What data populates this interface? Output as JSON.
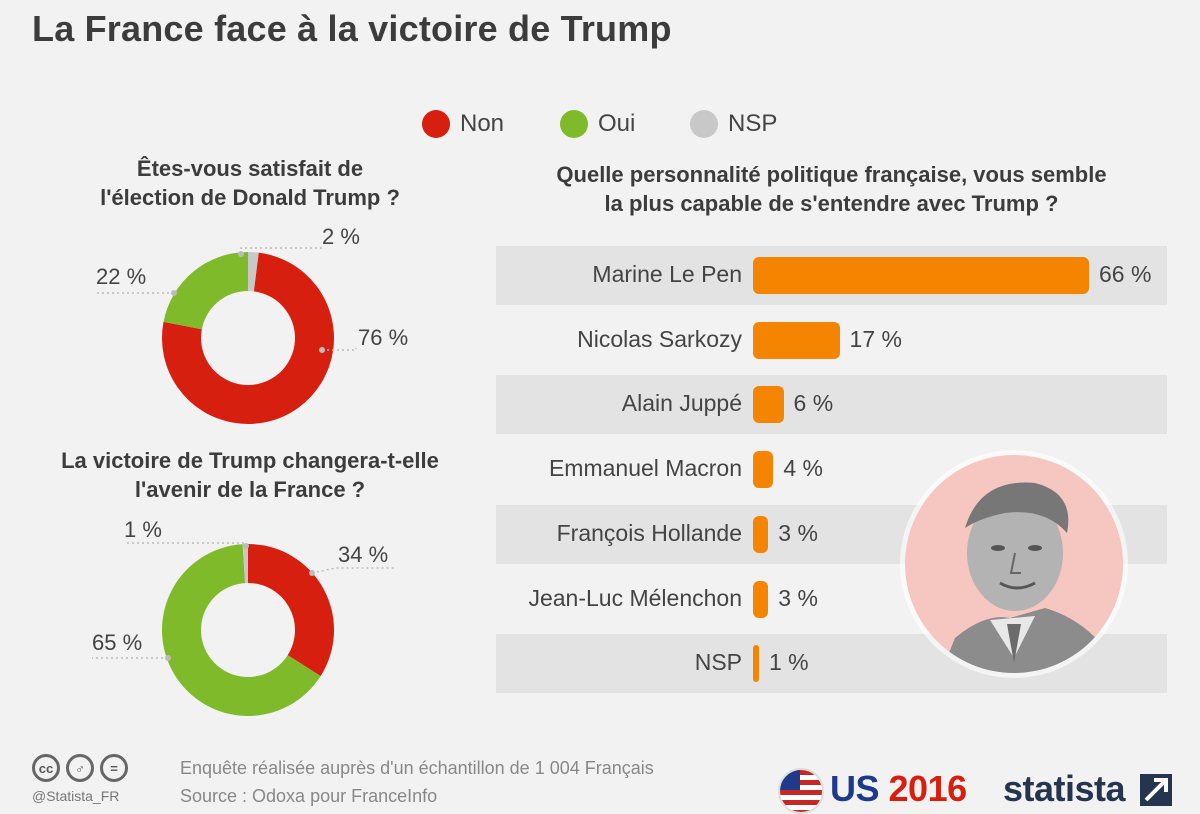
{
  "title": "La France face à la victoire de Trump",
  "legend": [
    {
      "label": "Non",
      "color": "#d71f10"
    },
    {
      "label": "Oui",
      "color": "#7fba2a"
    },
    {
      "label": "NSP",
      "color": "#c8c8c8"
    }
  ],
  "colors": {
    "bar": "#f58400",
    "row_stripe": "#e3e3e3",
    "portrait": "#f6c6c1"
  },
  "chart_data": [
    {
      "type": "pie",
      "title": "Êtes-vous satisfait de l'élection de Donald Trump ?",
      "title_lines": [
        "Êtes-vous satisfait de",
        "l'élection de Donald Trump ?"
      ],
      "slices": [
        {
          "label": "Non",
          "value": 76,
          "display": "76 %"
        },
        {
          "label": "Oui",
          "value": 22,
          "display": "22 %"
        },
        {
          "label": "NSP",
          "value": 2,
          "display": "2 %"
        }
      ]
    },
    {
      "type": "pie",
      "title": "La victoire de Trump changera-t-elle l'avenir de la France ?",
      "title_lines": [
        "La victoire de Trump changera-t-elle",
        "l'avenir de la France ?"
      ],
      "slices": [
        {
          "label": "Non",
          "value": 34,
          "display": "34 %"
        },
        {
          "label": "Oui",
          "value": 65,
          "display": "65 %"
        },
        {
          "label": "NSP",
          "value": 1,
          "display": "1 %"
        }
      ]
    },
    {
      "type": "bar",
      "title": "Quelle personnalité politique française, vous semble la plus capable de s'entendre avec Trump ?",
      "title_lines": [
        "Quelle personnalité politique française, vous semble",
        "la plus capable de s'entendre avec Trump ?"
      ],
      "categories": [
        "Marine Le Pen",
        "Nicolas Sarkozy",
        "Alain Juppé",
        "Emmanuel Macron",
        "François Hollande",
        "Jean-Luc Mélenchon",
        "NSP"
      ],
      "values": [
        66,
        17,
        6,
        4,
        3,
        3,
        1
      ],
      "value_labels": [
        "66 %",
        "17 %",
        "6 %",
        "4 %",
        "3 %",
        "3 %",
        "1 %"
      ],
      "xlim": [
        0,
        66
      ]
    }
  ],
  "footer": {
    "handle": "@Statista_FR",
    "note": "Enquête réalisée auprès d'un échantillon de 1 004 Français",
    "source": "Source : Odoxa pour FranceInfo",
    "badge_prefix": "US",
    "badge_year": "2016",
    "brand": "statista"
  }
}
